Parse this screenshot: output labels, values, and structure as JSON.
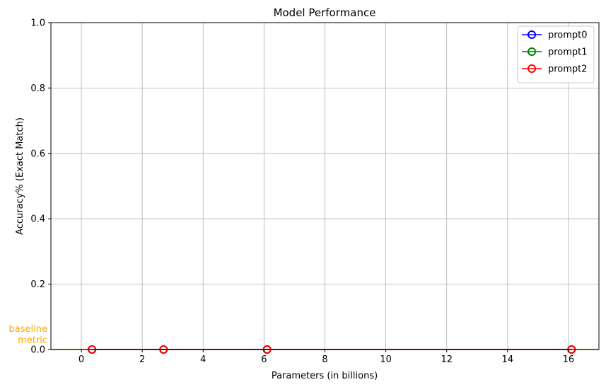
{
  "chart_data": {
    "type": "line",
    "title": "Model Performance",
    "xlabel": "Parameters (in billions)",
    "ylabel": "Accuracy% (Exact Match)",
    "xlim": [
      -1,
      17
    ],
    "ylim": [
      0,
      1
    ],
    "xticks": [
      0,
      2,
      4,
      6,
      8,
      10,
      12,
      14,
      16
    ],
    "yticks": [
      0.0,
      0.2,
      0.4,
      0.6,
      0.8,
      1.0
    ],
    "ytick_labels": [
      "0.0",
      "0.2",
      "0.4",
      "0.6",
      "0.8",
      "1.0"
    ],
    "grid": true,
    "legend_position": "top-right",
    "x": [
      0.35,
      2.7,
      6.1,
      16.1
    ],
    "series": [
      {
        "name": "prompt0",
        "color": "#0000ff",
        "values": [
          0,
          0,
          0,
          0
        ]
      },
      {
        "name": "prompt1",
        "color": "#008000",
        "values": [
          0,
          0,
          0,
          0
        ]
      },
      {
        "name": "prompt2",
        "color": "#ff0000",
        "values": [
          0,
          0,
          0,
          0
        ]
      }
    ],
    "baseline": {
      "label_line1": "baseline",
      "label_line2": "metric",
      "value": 0,
      "color": "#ffa500"
    }
  }
}
